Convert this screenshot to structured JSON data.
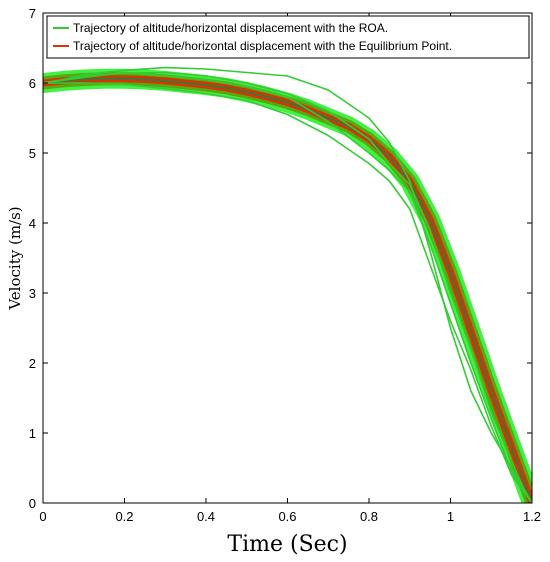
{
  "chart_data": {
    "type": "line",
    "xlabel": "Time (Sec)",
    "ylabel": "Velocity (m/s)",
    "xlim": [
      0,
      1.2
    ],
    "ylim": [
      0,
      7
    ],
    "xticks": [
      "0",
      "0.2",
      "0.4",
      "0.6",
      "0.8",
      "1",
      "1.2"
    ],
    "yticks": [
      "0",
      "1",
      "2",
      "3",
      "4",
      "5",
      "6",
      "7"
    ],
    "grid": false,
    "legend_position": "top",
    "colors": {
      "roa": "#33cc33",
      "equilibrium": "#dd3300",
      "band_outer": "#22ee22",
      "band_inner": "#55aa11",
      "center": "#556b2f"
    },
    "series": [
      {
        "name": "Trajectory of altitude/horizontal displacement with the ROA.",
        "role": "roa_bounds",
        "lines": [
          {
            "x": [
              0,
              0.05,
              0.1,
              0.2,
              0.3,
              0.4,
              0.5,
              0.6,
              0.7,
              0.8,
              0.85,
              0.9,
              0.95,
              1.0,
              1.05,
              1.1,
              1.15,
              1.2
            ],
            "y": [
              6.0,
              6.05,
              6.12,
              6.18,
              6.22,
              6.2,
              6.15,
              6.1,
              5.9,
              5.5,
              5.15,
              4.6,
              3.6,
              2.5,
              1.6,
              1.0,
              0.5,
              0.0
            ]
          },
          {
            "x": [
              0,
              0.1,
              0.2,
              0.3,
              0.4,
              0.5,
              0.6,
              0.7,
              0.8,
              0.85,
              0.9,
              0.95,
              1.0,
              1.05,
              1.1,
              1.15,
              1.18,
              1.2
            ],
            "y": [
              6.0,
              6.1,
              6.14,
              6.15,
              6.1,
              6.0,
              5.85,
              5.6,
              5.2,
              4.85,
              4.55,
              3.9,
              3.0,
              2.2,
              1.3,
              0.6,
              0.2,
              0.0
            ]
          },
          {
            "x": [
              0,
              0.1,
              0.2,
              0.3,
              0.4,
              0.5,
              0.6,
              0.7,
              0.8,
              0.85,
              0.9,
              0.95,
              1.0,
              1.05,
              1.1,
              1.15,
              1.2
            ],
            "y": [
              6.0,
              6.0,
              5.98,
              5.92,
              5.85,
              5.75,
              5.55,
              5.25,
              4.85,
              4.6,
              4.2,
              3.4,
              2.6,
              1.9,
              1.1,
              0.4,
              0.0
            ]
          },
          {
            "x": [
              0,
              0.1,
              0.2,
              0.3,
              0.4,
              0.5,
              0.6,
              0.7,
              0.8,
              0.85,
              0.9,
              0.95,
              1.0,
              1.05,
              1.1,
              1.15,
              1.2
            ],
            "y": [
              6.0,
              6.08,
              6.15,
              6.1,
              6.05,
              5.95,
              5.8,
              5.45,
              5.0,
              4.75,
              4.45,
              3.7,
              2.85,
              2.0,
              1.2,
              0.45,
              0.0
            ]
          }
        ]
      },
      {
        "name": "Trajectory of  altitude/horizontal displacement with the Equilibrium Point.",
        "role": "equilibrium_center",
        "x": [
          0,
          0.05,
          0.1,
          0.15,
          0.2,
          0.25,
          0.3,
          0.35,
          0.4,
          0.45,
          0.5,
          0.55,
          0.6,
          0.65,
          0.7,
          0.75,
          0.8,
          0.85,
          0.9,
          0.95,
          1.0,
          1.05,
          1.1,
          1.15,
          1.2
        ],
        "y": [
          6.0,
          6.03,
          6.05,
          6.06,
          6.06,
          6.05,
          6.03,
          6.0,
          5.97,
          5.93,
          5.87,
          5.8,
          5.72,
          5.62,
          5.5,
          5.38,
          5.2,
          4.95,
          4.6,
          4.05,
          3.3,
          2.45,
          1.6,
          0.8,
          0.0
        ]
      }
    ]
  }
}
